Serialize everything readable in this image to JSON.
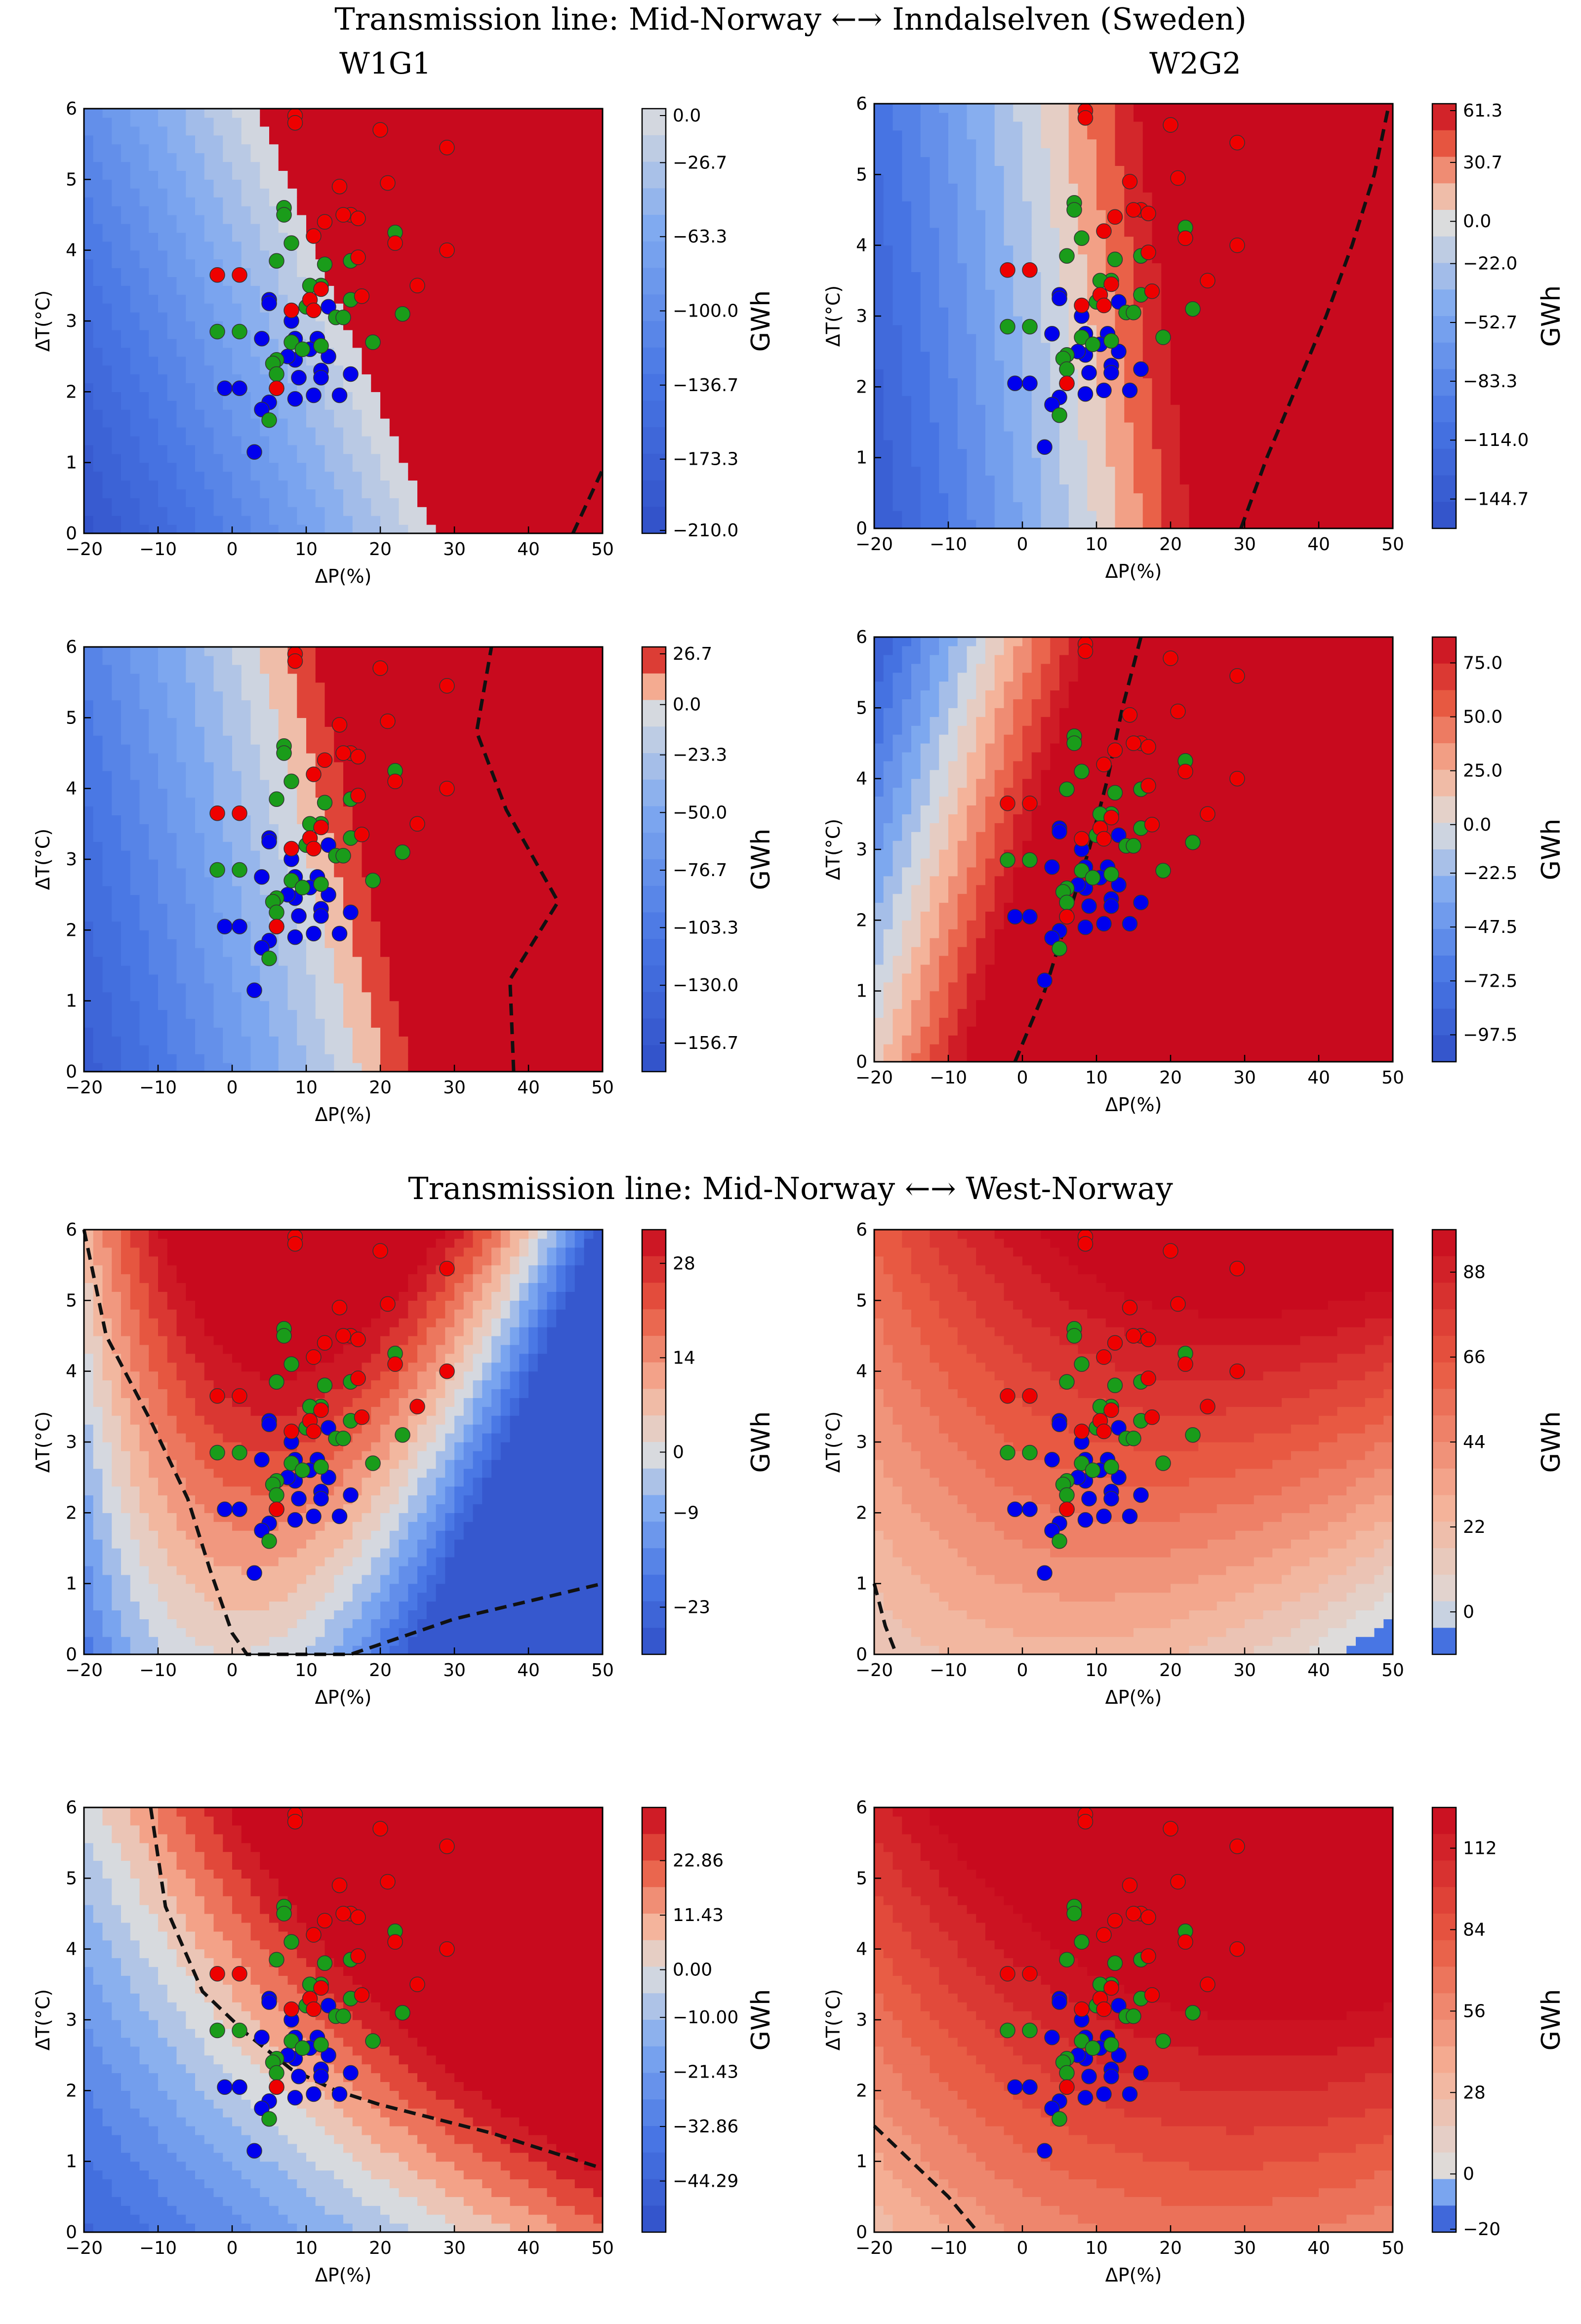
{
  "headings": {
    "section1": "Transmission line: Mid-Norway ←→ Inndalselven (Sweden)",
    "section2": "Transmission line: Mid-Norway ←→ West-Norway",
    "col_left": "W1G1",
    "col_right": "W2G2"
  },
  "colors": {
    "blue": "#0000ee",
    "green": "#1a9c1a",
    "red": "#ee0000"
  },
  "scatter": {
    "red": [
      [
        29,
        5.45
      ],
      [
        20,
        5.7
      ],
      [
        8.5,
        5.9
      ],
      [
        8.5,
        5.8
      ],
      [
        21,
        4.95
      ],
      [
        14.5,
        4.9
      ],
      [
        16,
        4.5
      ],
      [
        17,
        4.45
      ],
      [
        12.5,
        4.4
      ],
      [
        15,
        4.5
      ],
      [
        11,
        4.2
      ],
      [
        22,
        4.1
      ],
      [
        29,
        4
      ],
      [
        17,
        3.9
      ],
      [
        -2,
        3.65
      ],
      [
        1,
        3.65
      ],
      [
        25,
        3.5
      ],
      [
        12,
        3.45
      ],
      [
        17.5,
        3.35
      ],
      [
        10.5,
        3.3
      ],
      [
        8,
        3.15
      ],
      [
        11,
        3.15
      ],
      [
        6,
        2.05
      ]
    ],
    "green": [
      [
        7,
        4.6
      ],
      [
        7,
        4.5
      ],
      [
        8,
        4.1
      ],
      [
        22,
        4.25
      ],
      [
        6,
        3.85
      ],
      [
        16,
        3.85
      ],
      [
        12.5,
        3.8
      ],
      [
        12,
        3.5
      ],
      [
        10.5,
        3.5
      ],
      [
        10,
        3.2
      ],
      [
        16,
        3.3
      ],
      [
        14,
        3.05
      ],
      [
        15,
        3.05
      ],
      [
        -2,
        2.85
      ],
      [
        1,
        2.85
      ],
      [
        23,
        3.1
      ],
      [
        8,
        2.7
      ],
      [
        12,
        2.65
      ],
      [
        19,
        2.7
      ],
      [
        9.5,
        2.6
      ],
      [
        6,
        2.45
      ],
      [
        5.5,
        2.4
      ],
      [
        6,
        2.25
      ],
      [
        5,
        1.6
      ]
    ],
    "blue": [
      [
        5,
        3.3
      ],
      [
        5,
        3.25
      ],
      [
        13,
        3.2
      ],
      [
        8,
        3
      ],
      [
        4,
        2.75
      ],
      [
        8.5,
        2.75
      ],
      [
        11.5,
        2.75
      ],
      [
        10.5,
        2.6
      ],
      [
        8.5,
        2.45
      ],
      [
        13,
        2.5
      ],
      [
        7.5,
        2.5
      ],
      [
        12,
        2.3
      ],
      [
        16,
        2.25
      ],
      [
        12,
        2.2
      ],
      [
        9,
        2.2
      ],
      [
        -1,
        2.05
      ],
      [
        1,
        2.05
      ],
      [
        6,
        2.05
      ],
      [
        11,
        1.95
      ],
      [
        14.5,
        1.95
      ],
      [
        8.5,
        1.9
      ],
      [
        5,
        1.85
      ],
      [
        4,
        1.75
      ],
      [
        3,
        1.15
      ]
    ]
  },
  "chart_data": [
    {
      "type": "contour",
      "title": "Transmission line: Mid-Norway ←→ Inndalselven (Sweden) — W1G1 (top)",
      "xlabel": "ΔP(%)",
      "ylabel": "ΔT(°C)",
      "colorbar_label": "GWh",
      "xlim": [
        -20,
        50
      ],
      "ylim": [
        0,
        6
      ],
      "xticks": [
        "−20",
        "−10",
        "0",
        "10",
        "20",
        "30",
        "40",
        "50"
      ],
      "yticks": [
        "0",
        "1",
        "2",
        "3",
        "4",
        "5",
        "6"
      ],
      "colorbar_ticks": [
        "0.0",
        "−26.7",
        "−63.3",
        "−100.0",
        "−136.7",
        "−173.3",
        "−210.0"
      ],
      "field_range": [
        -210,
        0
      ],
      "field": {
        "base": -203,
        "px": 4.3,
        "py": 17,
        "pxy": 0,
        "pxx": 0,
        "pyy": 0
      },
      "zero_contour": [
        [
          46,
          0
        ],
        [
          50,
          0.9
        ]
      ],
      "scatter": "shared"
    },
    {
      "type": "contour",
      "title": "Transmission line: Mid-Norway ←→ Inndalselven (Sweden) — W2G2 (top)",
      "xlabel": "ΔP(%)",
      "ylabel": "ΔT(°C)",
      "colorbar_label": "GWh",
      "xlim": [
        -20,
        50
      ],
      "ylim": [
        0,
        6
      ],
      "xticks": [
        "−20",
        "−10",
        "0",
        "10",
        "20",
        "30",
        "40",
        "50"
      ],
      "yticks": [
        "0",
        "1",
        "2",
        "3",
        "4",
        "5",
        "6"
      ],
      "colorbar_ticks": [
        "61.3",
        "30.7",
        "0.0",
        "−22.0",
        "−52.7",
        "−83.3",
        "−114.0",
        "−144.7"
      ],
      "field_range": [
        -160,
        61.3
      ],
      "field": {
        "base": -145,
        "px": 4.83,
        "py": 5.9,
        "pxy": 0,
        "pxx": 0,
        "pyy": 0
      },
      "zero_contour": [
        [
          29.5,
          0
        ],
        [
          33,
          1
        ],
        [
          37,
          2
        ],
        [
          41,
          3
        ],
        [
          44.5,
          4
        ],
        [
          47.5,
          5
        ],
        [
          49.5,
          6
        ]
      ],
      "scatter": "shared"
    },
    {
      "type": "contour",
      "title": "Transmission line: Mid-Norway ←→ Inndalselven (Sweden) — W1G1 (bottom)",
      "xlabel": "ΔP(%)",
      "ylabel": "ΔT(°C)",
      "colorbar_label": "GWh",
      "xlim": [
        -20,
        50
      ],
      "ylim": [
        0,
        6
      ],
      "xticks": [
        "−20",
        "−10",
        "0",
        "10",
        "20",
        "30",
        "40",
        "50"
      ],
      "yticks": [
        "0",
        "1",
        "2",
        "3",
        "4",
        "5",
        "6"
      ],
      "colorbar_ticks": [
        "26.7",
        "0.0",
        "−23.3",
        "−50.0",
        "−76.7",
        "−103.3",
        "−130.0",
        "−156.7"
      ],
      "field_range": [
        -170,
        26.7
      ],
      "field": {
        "base": -150,
        "px": 4.0,
        "py": 9,
        "pxy": 0,
        "pxx": 0,
        "pyy": 0
      },
      "zero_contour": [
        [
          38,
          0
        ],
        [
          37.5,
          1.3
        ],
        [
          44,
          2.4
        ],
        [
          37,
          3.7
        ],
        [
          33,
          4.8
        ],
        [
          35,
          6
        ]
      ],
      "scatter": "shared"
    },
    {
      "type": "contour",
      "title": "Transmission line: Mid-Norway ←→ Inndalselven (Sweden) — W2G2 (bottom)",
      "xlabel": "ΔP(%)",
      "ylabel": "ΔT(°C)",
      "colorbar_label": "GWh",
      "xlim": [
        -20,
        50
      ],
      "ylim": [
        0,
        6
      ],
      "xticks": [
        "−20",
        "−10",
        "0",
        "10",
        "20",
        "30",
        "40",
        "50"
      ],
      "yticks": [
        "0",
        "1",
        "2",
        "3",
        "4",
        "5",
        "6"
      ],
      "colorbar_ticks": [
        "75.0",
        "50.0",
        "25.0",
        "0.0",
        "−22.5",
        "−47.5",
        "−72.5",
        "−97.5"
      ],
      "field_range": [
        -110,
        87
      ],
      "field": {
        "base": 10,
        "px": 6.5,
        "py": -18,
        "pxy": 0,
        "pxx": 0,
        "pyy": 0
      },
      "zero_contour": [
        [
          -1,
          0
        ],
        [
          3,
          1
        ],
        [
          6,
          2
        ],
        [
          9,
          3
        ],
        [
          11.5,
          4
        ],
        [
          13.5,
          5
        ],
        [
          16,
          6
        ]
      ],
      "scatter": "shared"
    },
    {
      "type": "contour",
      "title": "Transmission line: Mid-Norway ←→ West-Norway — W1G1 (top)",
      "xlabel": "ΔP(%)",
      "ylabel": "ΔT(°C)",
      "colorbar_label": "GWh",
      "xlim": [
        -20,
        50
      ],
      "ylim": [
        0,
        6
      ],
      "xticks": [
        "−20",
        "−10",
        "0",
        "10",
        "20",
        "30",
        "40",
        "50"
      ],
      "yticks": [
        "0",
        "1",
        "2",
        "3",
        "4",
        "5",
        "6"
      ],
      "colorbar_ticks": [
        "28",
        "14",
        "0",
        "−9",
        "−23"
      ],
      "field_range": [
        -30,
        33
      ],
      "field": {
        "base": -18.7,
        "px": 2.0,
        "py": 4.4,
        "pxy": 0.16,
        "pxx": -0.05,
        "pyy": 0
      },
      "zero_contour": [
        [
          -20,
          6
        ],
        [
          -17,
          4.5
        ],
        [
          -11,
          3.3
        ],
        [
          -6,
          2.2
        ],
        [
          -3,
          1.2
        ],
        [
          0,
          0.3
        ],
        [
          2,
          0
        ],
        [
          16,
          0
        ],
        [
          30,
          0.5
        ],
        [
          50,
          1
        ]
      ],
      "scatter": "shared"
    },
    {
      "type": "contour",
      "title": "Transmission line: Mid-Norway ←→ West-Norway — W2G2 (top)",
      "xlabel": "ΔP(%)",
      "ylabel": "ΔT(°C)",
      "colorbar_label": "GWh",
      "xlim": [
        -20,
        50
      ],
      "ylim": [
        0,
        6
      ],
      "xticks": [
        "−20",
        "−10",
        "0",
        "10",
        "20",
        "30",
        "40",
        "50"
      ],
      "yticks": [
        "0",
        "1",
        "2",
        "3",
        "4",
        "5",
        "6"
      ],
      "colorbar_ticks": [
        "88",
        "66",
        "44",
        "22",
        "0"
      ],
      "field_range": [
        -11,
        99
      ],
      "field": {
        "base": 13,
        "px": 1.0,
        "py": 8,
        "pxy": 0.2,
        "pxx": -0.02,
        "pyy": 0
      },
      "zero_contour": [
        [
          -20,
          1
        ],
        [
          -18.5,
          0.4
        ],
        [
          -17,
          0
        ]
      ],
      "scatter": "shared"
    },
    {
      "type": "contour",
      "title": "Transmission line: Mid-Norway ←→ West-Norway — W1G1 (bottom)",
      "xlabel": "ΔP(%)",
      "ylabel": "ΔT(°C)",
      "colorbar_label": "GWh",
      "xlim": [
        -20,
        50
      ],
      "ylim": [
        0,
        6
      ],
      "xticks": [
        "−20",
        "−10",
        "0",
        "10",
        "20",
        "30",
        "40",
        "50"
      ],
      "yticks": [
        "0",
        "1",
        "2",
        "3",
        "4",
        "5",
        "6"
      ],
      "colorbar_ticks": [
        "22.86",
        "11.43",
        "0.00",
        "−10.00",
        "−21.43",
        "−32.86",
        "−44.29"
      ],
      "field_range": [
        -55,
        34
      ],
      "field": {
        "base": -44,
        "px": 0.9,
        "py": 7,
        "pxy": 0.16,
        "pxx": 0,
        "pyy": 0
      },
      "zero_contour": [
        [
          -11,
          6
        ],
        [
          -9,
          4.6
        ],
        [
          -4,
          3.4
        ],
        [
          2,
          2.8
        ],
        [
          8,
          2.3
        ],
        [
          14,
          2
        ],
        [
          20,
          1.8
        ],
        [
          35,
          1.4
        ],
        [
          50,
          0.9
        ]
      ],
      "scatter": "shared"
    },
    {
      "type": "contour",
      "title": "Transmission line: Mid-Norway ←→ West-Norway — W2G2 (bottom)",
      "xlabel": "ΔP(%)",
      "ylabel": "ΔT(°C)",
      "colorbar_label": "GWh",
      "xlim": [
        -20,
        50
      ],
      "ylim": [
        0,
        6
      ],
      "xticks": [
        "−20",
        "−10",
        "0",
        "10",
        "20",
        "30",
        "40",
        "50"
      ],
      "yticks": [
        "0",
        "1",
        "2",
        "3",
        "4",
        "5",
        "6"
      ],
      "colorbar_ticks": [
        "112",
        "84",
        "56",
        "28",
        "0",
        "−20"
      ],
      "field_range": [
        -20,
        126
      ],
      "field": {
        "base": 26,
        "px": 1.8,
        "py": 14,
        "pxy": 0.12,
        "pxx": -0.02,
        "pyy": 0
      },
      "zero_contour": [
        [
          -20,
          1.5
        ],
        [
          -15,
          1
        ],
        [
          -10,
          0.5
        ],
        [
          -6,
          0
        ]
      ],
      "scatter": "shared"
    }
  ]
}
